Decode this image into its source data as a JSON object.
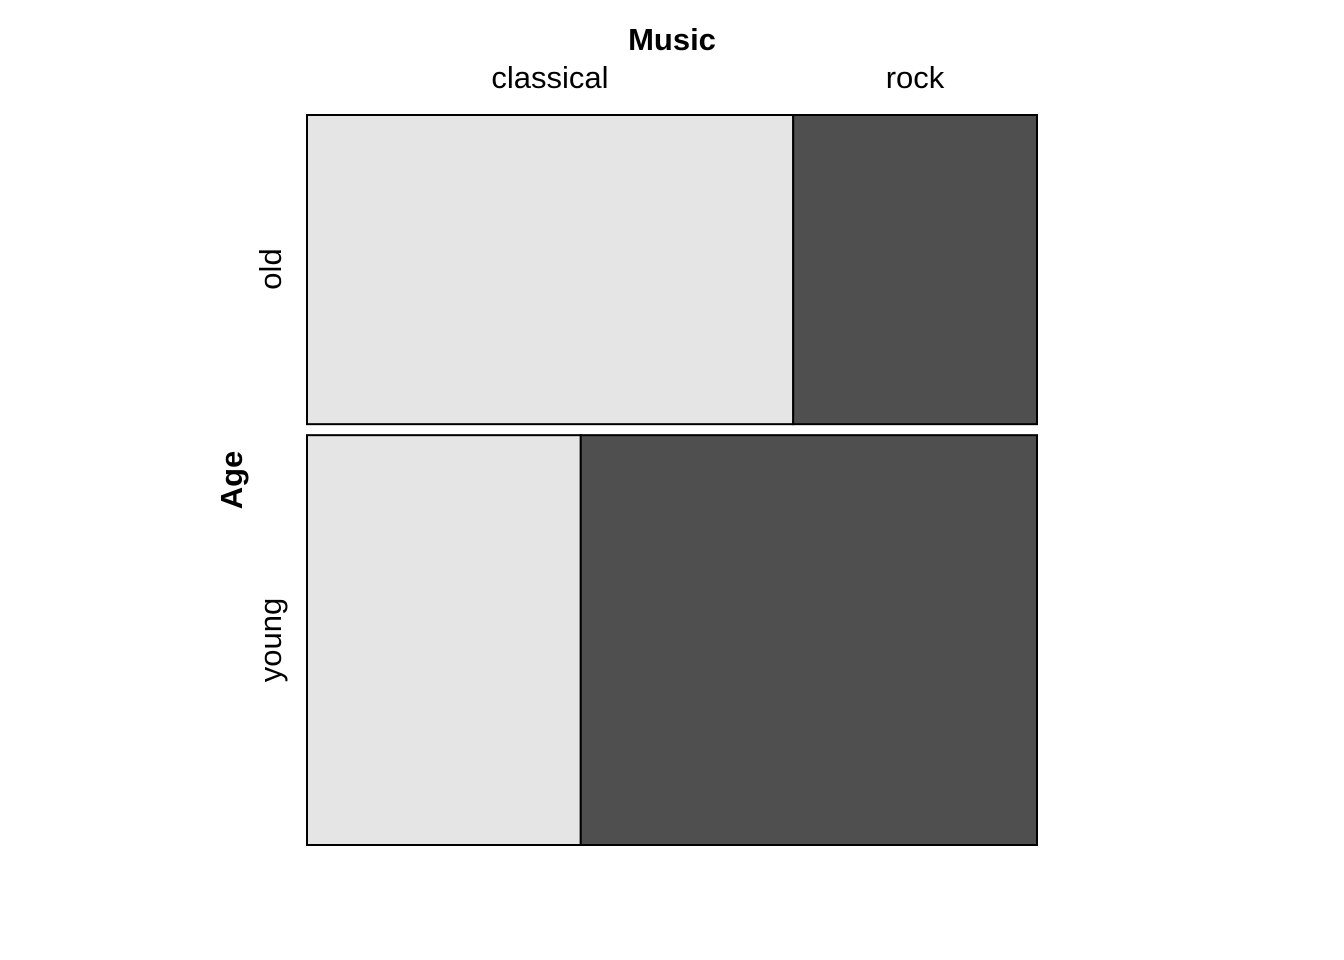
{
  "chart_data": {
    "type": "mosaic",
    "col_variable": "Music",
    "row_variable": "Age",
    "col_categories": [
      "classical",
      "rock"
    ],
    "row_categories": [
      "old",
      "young"
    ],
    "row_proportions": [
      0.43,
      0.57
    ],
    "cells": [
      {
        "row": "old",
        "col": "classical",
        "proportion_within_row": 0.666
      },
      {
        "row": "old",
        "col": "rock",
        "proportion_within_row": 0.334
      },
      {
        "row": "young",
        "col": "classical",
        "proportion_within_row": 0.375
      },
      {
        "row": "young",
        "col": "rock",
        "proportion_within_row": 0.625
      }
    ],
    "fill_colors": {
      "classical": "#e5e5e5",
      "rock": "#4f4f4f"
    }
  }
}
